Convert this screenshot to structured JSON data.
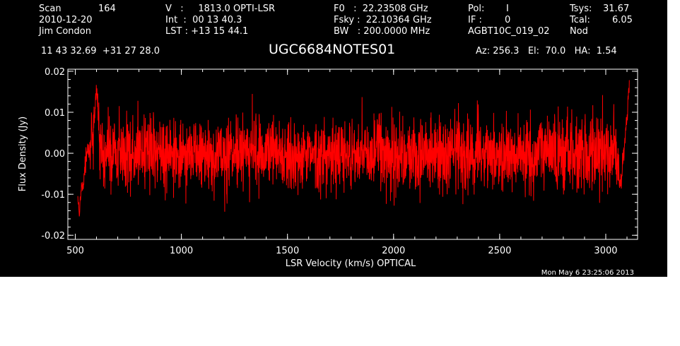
{
  "header": {
    "scan_label": "Scan",
    "scan_value": "164",
    "date": "2010-12-20",
    "observer": "Jim Condon",
    "coords": "11 43 32.69  +31 27 28.0",
    "v_line": "V   :     1813.0 OPTI-LSR",
    "int_line": "Int  :  00 13 40.3",
    "lst_line": "LST : +13 15 44.1",
    "f0_line": "F0   :  22.23508 GHz",
    "fsky_line": "Fsky :  22.10364 GHz",
    "bw_line": "BW   : 200.0000 MHz",
    "pol_label": "Pol:",
    "pol_value": "I",
    "if_label": "IF :",
    "if_value": "0",
    "project": "AGBT10C_019_02",
    "mode": "Nod",
    "tsys_label": "Tsys:",
    "tsys_value": "31.67",
    "tcal_label": "Tcal:",
    "tcal_value": "6.05",
    "source": "UGC6684NOTES01",
    "az_el_ha": "Az: 256.3   El:  70.0   HA:  1.54",
    "timestamp": "Mon May  6 23:25:06 2013"
  },
  "colors": {
    "background": "#000000",
    "axes": "#ffffff",
    "series": "#ff0000",
    "page": "#ffffff"
  },
  "chart_data": {
    "type": "line",
    "title": "UGC6684NOTES01",
    "xlabel": "LSR Velocity (km/s) OPTICAL",
    "ylabel": "Flux Density (Jy)",
    "xlim": [
      465,
      3150
    ],
    "ylim": [
      -0.021,
      0.0205
    ],
    "xticks": [
      500,
      1000,
      1500,
      2000,
      2500,
      3000
    ],
    "xtick_labels": [
      "500",
      "1000",
      "1500",
      "2000",
      "2500",
      "3000"
    ],
    "yticks": [
      -0.02,
      -0.01,
      0.0,
      0.01,
      0.02
    ],
    "ytick_labels": [
      "-0.02",
      "-0.01",
      "0.00",
      "0.01",
      "0.02"
    ],
    "grid": false,
    "series": [
      {
        "x_range": [
          512,
          3112
        ],
        "approx_points": 2600,
        "baseline": 0.0,
        "noise_rms": 0.0045,
        "features": [
          {
            "x": 512,
            "y": -0.003
          },
          {
            "x": 520,
            "y": -0.015
          },
          {
            "x": 535,
            "y": -0.008
          },
          {
            "x": 560,
            "y": 0.0
          },
          {
            "x": 600,
            "y": 0.015
          },
          {
            "x": 3070,
            "y": -0.008
          },
          {
            "x": 3095,
            "y": 0.004
          },
          {
            "x": 3112,
            "y": 0.017
          }
        ]
      }
    ]
  }
}
